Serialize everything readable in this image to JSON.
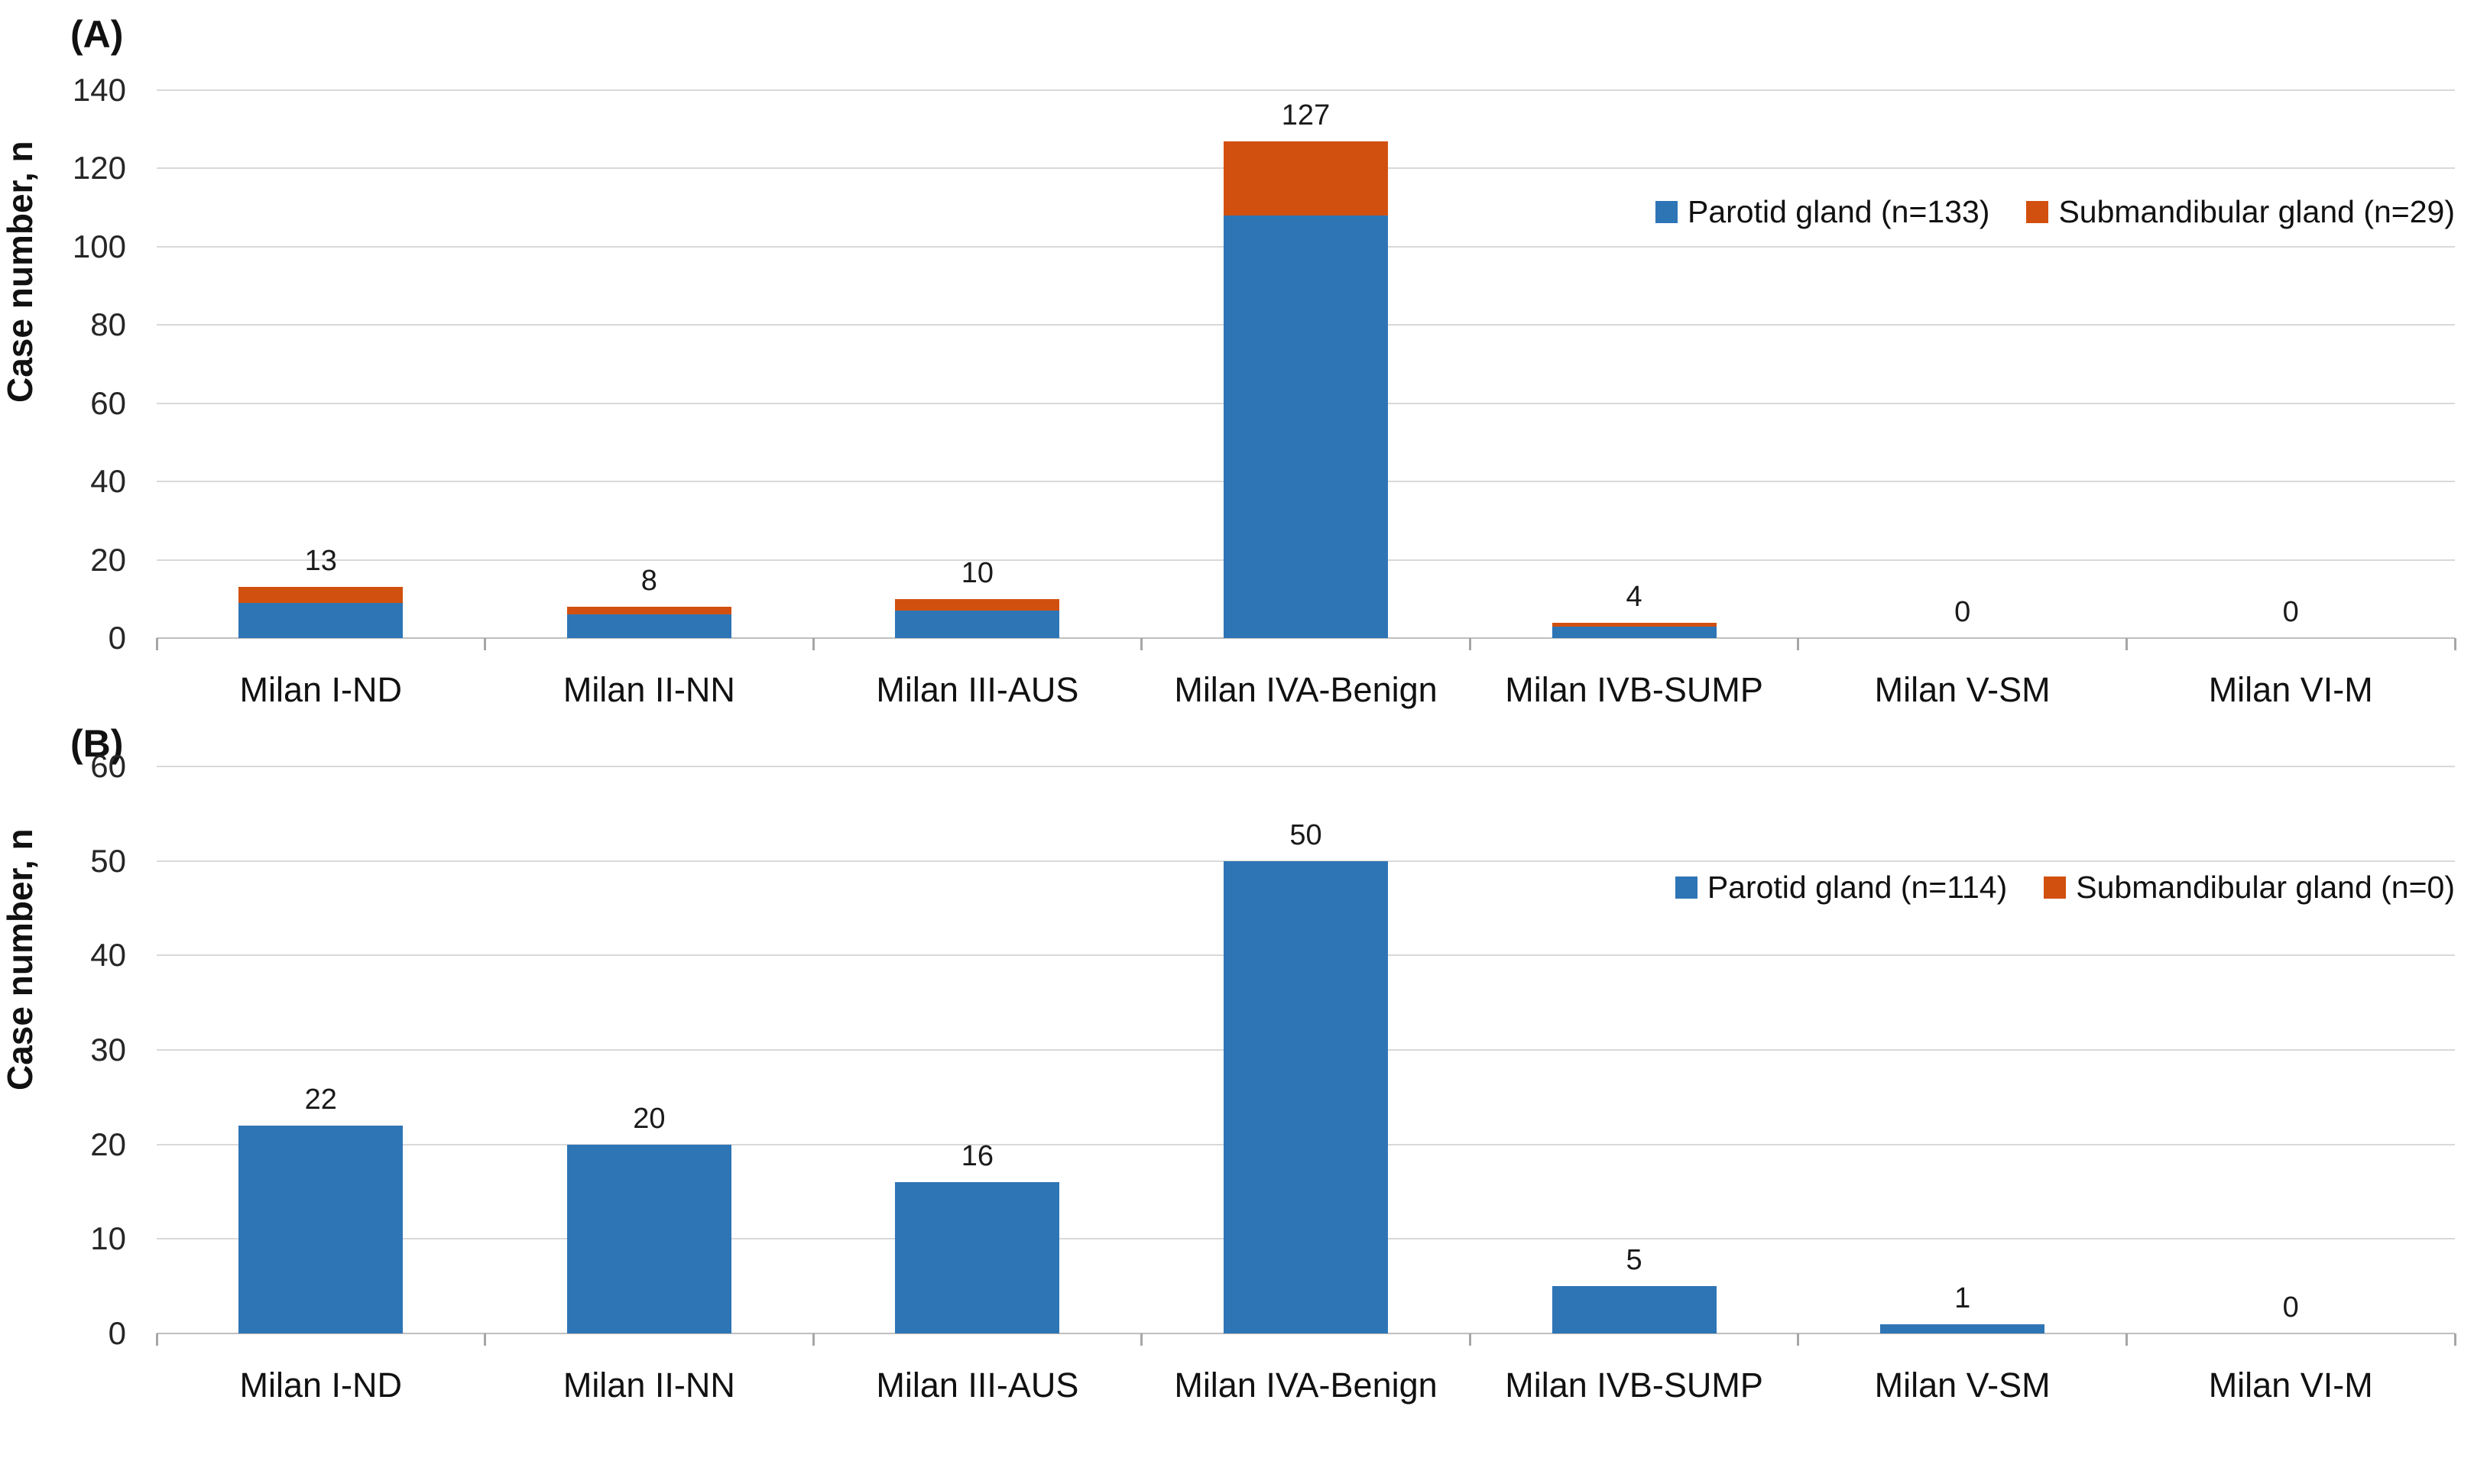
{
  "chart_data": [
    {
      "type": "bar",
      "stacked": true,
      "panel_label": "(A)",
      "ylabel": "Case number, n",
      "xlabel": "",
      "ylim": [
        0,
        140
      ],
      "y_max": 140,
      "y_ticks": [
        0,
        20,
        40,
        60,
        80,
        100,
        120,
        140
      ],
      "grid": "horizontal",
      "legend_position": "inside-top-right",
      "categories": [
        "Milan I-ND",
        "Milan II-NN",
        "Milan III-AUS",
        "Milan IVA-Benign",
        "Milan IVB-SUMP",
        "Milan V-SM",
        "Milan VI-M"
      ],
      "totals": [
        13,
        8,
        10,
        127,
        4,
        0,
        0
      ],
      "series": [
        {
          "name": "Parotid gland (n=133)",
          "color": "#2E75B6",
          "values": [
            9,
            6,
            7,
            108,
            3,
            0,
            0
          ]
        },
        {
          "name": "Submandibular gland (n=29)",
          "color": "#D2500F",
          "values": [
            4,
            2,
            3,
            19,
            1,
            0,
            0
          ]
        }
      ],
      "legend": [
        {
          "label": "Parotid gland (n=133)",
          "color": "#2E75B6"
        },
        {
          "label": "Submandibular gland (n=29)",
          "color": "#D2500F"
        }
      ]
    },
    {
      "type": "bar",
      "stacked": true,
      "panel_label": "(B)",
      "ylabel": "Case number, n",
      "xlabel": "",
      "ylim": [
        0,
        60
      ],
      "y_max": 60,
      "y_ticks": [
        0,
        10,
        20,
        30,
        40,
        50,
        60
      ],
      "grid": "horizontal",
      "legend_position": "inside-top-right",
      "categories": [
        "Milan I-ND",
        "Milan II-NN",
        "Milan III-AUS",
        "Milan IVA-Benign",
        "Milan IVB-SUMP",
        "Milan V-SM",
        "Milan VI-M"
      ],
      "totals": [
        22,
        20,
        16,
        50,
        5,
        1,
        0
      ],
      "series": [
        {
          "name": "Parotid gland (n=114)",
          "color": "#2E75B6",
          "values": [
            22,
            20,
            16,
            50,
            5,
            1,
            0
          ]
        },
        {
          "name": "Submandibular gland (n=0)",
          "color": "#D2500F",
          "values": [
            0,
            0,
            0,
            0,
            0,
            0,
            0
          ]
        }
      ],
      "legend": [
        {
          "label": "Parotid gland (n=114)",
          "color": "#2E75B6"
        },
        {
          "label": "Submandibular gland (n=0)",
          "color": "#D2500F"
        }
      ]
    }
  ],
  "colors": {
    "parotid_blue": "#2E75B6",
    "submandibular_orange": "#D2500F",
    "gridline": "#D9D9D9",
    "axis_line": "#BFBFBF"
  }
}
